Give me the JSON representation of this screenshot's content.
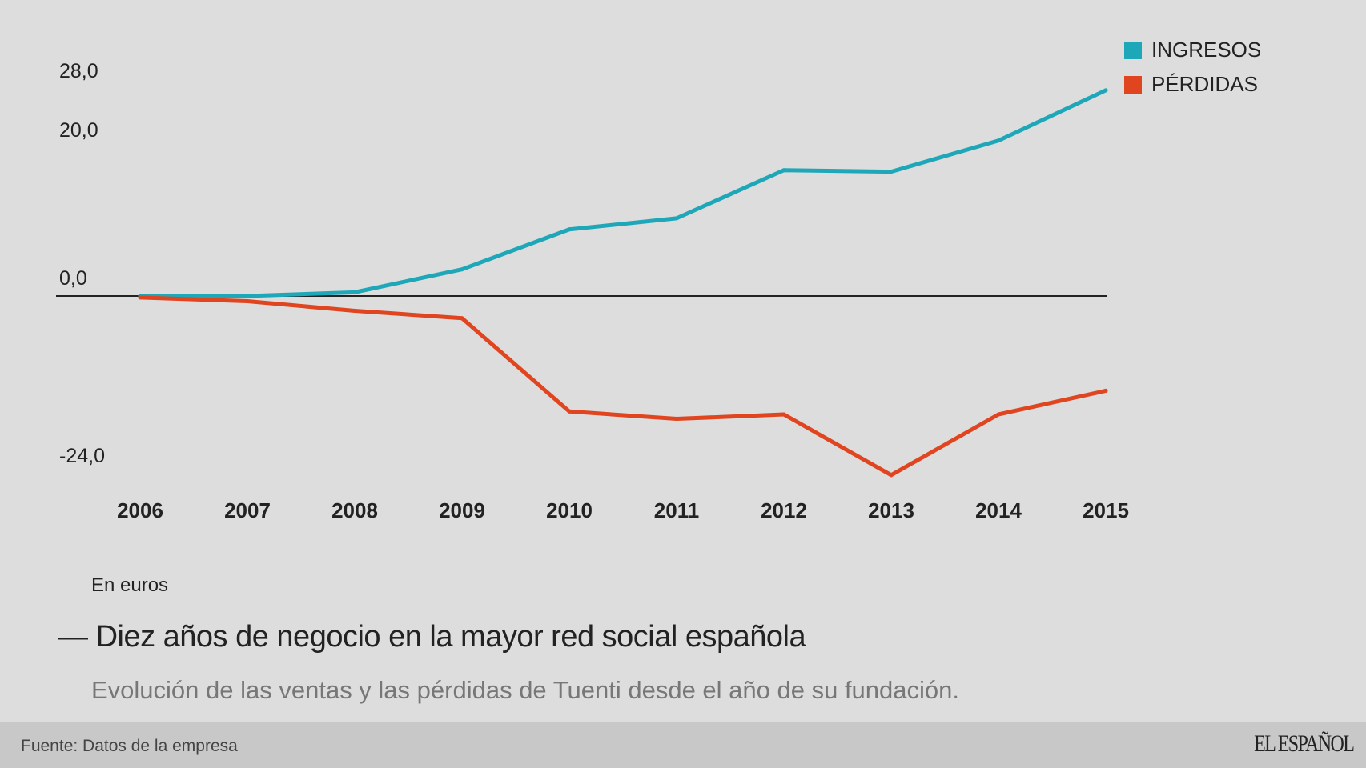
{
  "chart_data": {
    "type": "line",
    "title": "Diez años de negocio en la mayor red social española",
    "subtitle": "Evolución de las ventas y las pérdidas de Tuenti desde el año de su fundación.",
    "unit_note": "En euros",
    "categories": [
      "2006",
      "2007",
      "2008",
      "2009",
      "2010",
      "2011",
      "2012",
      "2013",
      "2014",
      "2015"
    ],
    "y_ticks": [
      "28,0",
      "20,0",
      "0,0",
      "-24,0"
    ],
    "y_tick_values": [
      28,
      20,
      0,
      -24
    ],
    "series": [
      {
        "name": "INGRESOS",
        "color": "#1ea7b8",
        "values": [
          0,
          0,
          0.5,
          3.6,
          9.0,
          10.5,
          17.0,
          16.8,
          21.0,
          27.8
        ]
      },
      {
        "name": "PÉRDIDAS",
        "color": "#e04520",
        "values": [
          -0.2,
          -0.7,
          -2.0,
          -3.0,
          -15.6,
          -16.6,
          -16.0,
          -24.2,
          -16.0,
          -12.8
        ]
      }
    ],
    "legend_position": "top-right",
    "grid": false,
    "zero_line": true
  },
  "footer": {
    "source": "Fuente: Datos de la empresa",
    "logo": "EL ESPAÑOL"
  }
}
